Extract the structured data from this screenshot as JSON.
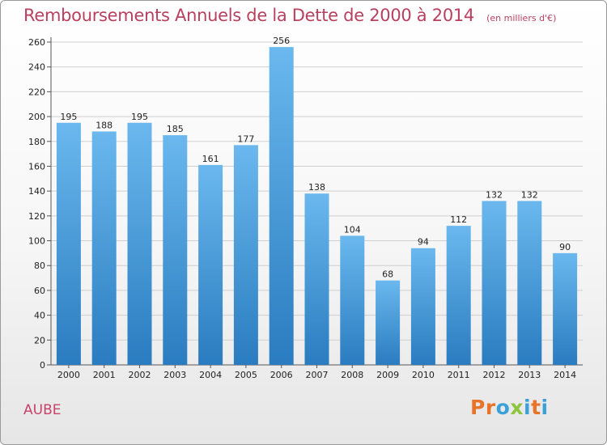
{
  "header": {
    "title": "Remboursements Annuels de la Dette de 2000 à 2014",
    "unit": "(en milliers d'€)"
  },
  "footer": {
    "area_name": "AUBE",
    "logo_text": "Proxiti"
  },
  "colors": {
    "title": "#b7405f",
    "bar_top": "#6ab8ee",
    "bar_bottom": "#2a7cc0",
    "grid": "#cfcfcf",
    "logo_letters": [
      "#e8742a",
      "#e8742a",
      "#3aa0d8",
      "#8cc63f",
      "#3aa0d8",
      "#e8742a",
      "#3aa0d8"
    ]
  },
  "chart_data": {
    "type": "bar",
    "title": "Remboursements Annuels de la Dette de 2000 à 2014",
    "subtitle": "(en milliers d'€)",
    "categories": [
      "2000",
      "2001",
      "2002",
      "2003",
      "2004",
      "2005",
      "2006",
      "2007",
      "2008",
      "2009",
      "2010",
      "2011",
      "2012",
      "2013",
      "2014"
    ],
    "values": [
      195,
      188,
      195,
      185,
      161,
      177,
      256,
      138,
      104,
      68,
      94,
      112,
      132,
      132,
      90
    ],
    "ylim": [
      0,
      260
    ],
    "yticks": [
      0,
      20,
      40,
      60,
      80,
      100,
      120,
      140,
      160,
      180,
      200,
      220,
      240,
      260
    ],
    "grid": true,
    "data_labels": true
  }
}
